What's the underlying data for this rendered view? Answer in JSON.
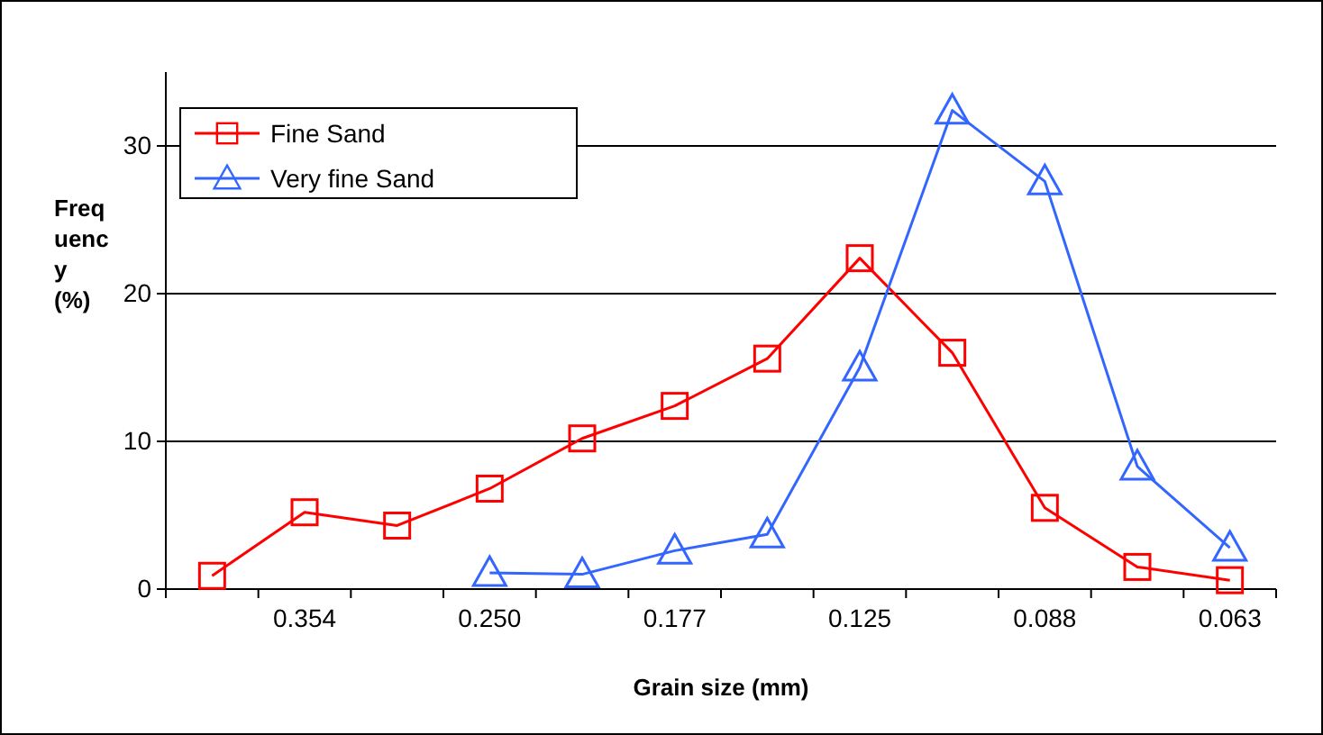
{
  "chart_data": {
    "type": "line",
    "xlabel": "Grain size  (mm)",
    "ylabel": "Frequency (%)",
    "categories": [
      null,
      "0.354",
      null,
      "0.250",
      null,
      "0.177",
      null,
      "0.125",
      null,
      "0.088",
      null,
      "0.063"
    ],
    "series": [
      {
        "name": "Fine Sand",
        "color": "#ff0000",
        "marker": "square",
        "values": [
          0.9,
          5.2,
          4.3,
          6.8,
          10.2,
          12.4,
          15.6,
          22.4,
          16.0,
          5.5,
          1.5,
          0.6
        ]
      },
      {
        "name": "Very fine Sand",
        "color": "#3366ff",
        "marker": "triangle",
        "values": [
          null,
          null,
          null,
          1.1,
          1.0,
          2.6,
          3.7,
          15.0,
          32.4,
          27.6,
          8.3,
          2.8
        ]
      }
    ],
    "ylim": [
      0,
      35
    ],
    "yticks": [
      0,
      10,
      20,
      30
    ],
    "grid": "y",
    "legend": "top left"
  }
}
